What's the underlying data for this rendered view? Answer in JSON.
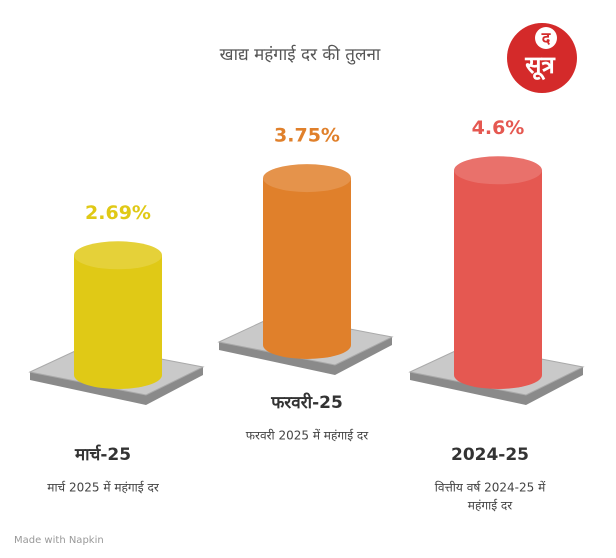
{
  "chart_data": {
    "type": "bar",
    "title": "खाद्य महंगाई दर की तुलना",
    "categories": [
      "मार्च-25",
      "फरवरी-25",
      "2024-25"
    ],
    "values": [
      2.69,
      3.75,
      4.6
    ],
    "value_labels": [
      "2.69%",
      "3.75%",
      "4.6%"
    ],
    "descriptions": [
      [
        "मार्च 2025 में महंगाई दर"
      ],
      [
        "फरवरी 2025 में महंगाई दर"
      ],
      [
        "वित्तीय वर्ष 2024-25 में",
        "महंगाई दर"
      ]
    ],
    "colors": [
      "#e0c916",
      "#e0802b",
      "#e55851"
    ]
  },
  "logo": {
    "top": "द",
    "bottom": "सूत्र"
  },
  "footer": "Made with Napkin"
}
